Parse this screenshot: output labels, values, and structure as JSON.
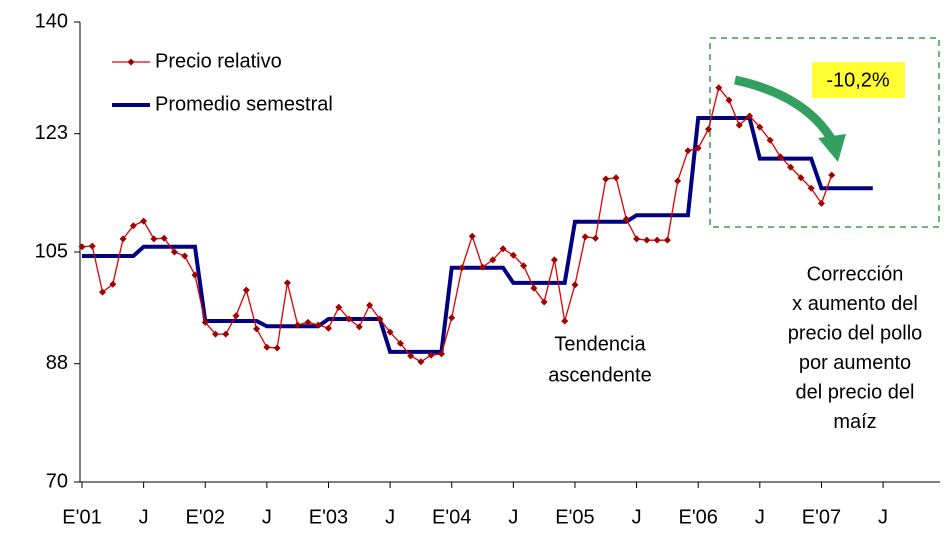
{
  "chart_data": {
    "type": "line",
    "categories": [
      "E'01",
      null,
      null,
      null,
      null,
      null,
      "J",
      null,
      null,
      null,
      null,
      null,
      "E'02",
      null,
      null,
      null,
      null,
      null,
      "J",
      null,
      null,
      null,
      null,
      null,
      "E'03",
      null,
      null,
      null,
      null,
      null,
      "J",
      null,
      null,
      null,
      null,
      null,
      "E'04",
      null,
      null,
      null,
      null,
      null,
      "J",
      null,
      null,
      null,
      null,
      null,
      "E'05",
      null,
      null,
      null,
      null,
      null,
      "J",
      null,
      null,
      null,
      null,
      null,
      "E'06",
      null,
      null,
      null,
      null,
      null,
      "J",
      null,
      null,
      null,
      null,
      null,
      "E'07",
      null,
      null,
      null,
      null,
      null,
      "J"
    ],
    "series": [
      {
        "name": "Precio relativo",
        "color": "#e00000",
        "marker_color": "#a00000",
        "values": [
          105.8,
          105.9,
          98.9,
          100.1,
          107.0,
          109.0,
          109.7,
          107.0,
          107.1,
          105.0,
          104.4,
          101.5,
          94.3,
          92.5,
          92.5,
          95.3,
          99.2,
          93.3,
          90.5,
          90.4,
          100.3,
          93.9,
          94.3,
          93.9,
          93.4,
          96.6,
          94.8,
          93.6,
          96.9,
          94.8,
          92.8,
          91.1,
          89.2,
          88.3,
          89.3,
          89.5,
          95.0,
          102.6,
          107.4,
          102.7,
          103.8,
          105.5,
          104.5,
          102.9,
          99.5,
          97.4,
          103.8,
          94.5,
          100.0,
          107.3,
          107.1,
          116.1,
          116.3,
          110.0,
          107.0,
          106.8,
          106.8,
          106.8,
          115.8,
          120.4,
          120.8,
          123.7,
          130.0,
          128.1,
          124.3,
          125.7,
          124.0,
          122.0,
          119.5,
          117.9,
          116.3,
          114.7,
          112.4,
          116.7,
          null,
          null,
          null,
          null,
          null
        ]
      },
      {
        "name": "Promedio semestral",
        "color": "#000080",
        "values": [
          104.4,
          104.4,
          104.4,
          104.4,
          104.4,
          104.4,
          105.8,
          105.8,
          105.8,
          105.8,
          105.8,
          105.8,
          94.5,
          94.5,
          94.5,
          94.5,
          94.5,
          94.5,
          93.7,
          93.7,
          93.7,
          93.7,
          93.7,
          93.7,
          94.8,
          94.8,
          94.8,
          94.8,
          94.8,
          94.8,
          89.8,
          89.8,
          89.8,
          89.8,
          89.8,
          89.8,
          102.6,
          102.6,
          102.6,
          102.6,
          102.6,
          102.6,
          100.3,
          100.3,
          100.3,
          100.3,
          100.3,
          100.3,
          109.6,
          109.6,
          109.6,
          109.6,
          109.6,
          109.6,
          110.6,
          110.6,
          110.6,
          110.6,
          110.6,
          110.6,
          125.4,
          125.4,
          125.4,
          125.4,
          125.4,
          125.4,
          119.2,
          119.2,
          119.2,
          119.2,
          119.2,
          119.2,
          114.7,
          114.7,
          114.7,
          114.7,
          114.7,
          114.7,
          null
        ]
      }
    ],
    "ylim": [
      70,
      140
    ],
    "yticks": [
      70,
      88,
      105,
      123,
      140
    ],
    "grid": false,
    "legend": "top-left",
    "annotations": {
      "change_label": "-10,2%",
      "trend_note": [
        "Tendencia",
        "ascendente"
      ],
      "correction_note": [
        "Corrección",
        "x aumento del",
        "precio del pollo",
        "por aumento",
        "del precio del",
        "maíz"
      ]
    }
  }
}
